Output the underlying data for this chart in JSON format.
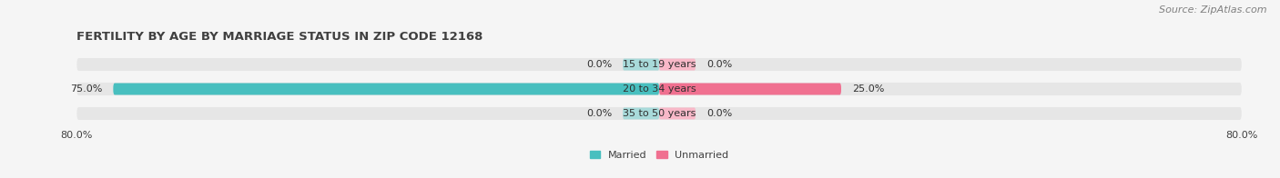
{
  "title": "FERTILITY BY AGE BY MARRIAGE STATUS IN ZIP CODE 12168",
  "source": "Source: ZipAtlas.com",
  "categories": [
    "15 to 19 years",
    "20 to 34 years",
    "35 to 50 years"
  ],
  "married_values": [
    0.0,
    75.0,
    0.0
  ],
  "unmarried_values": [
    0.0,
    25.0,
    0.0
  ],
  "married_color": "#48bfbf",
  "unmarried_color": "#f07090",
  "married_color_light": "#a8dada",
  "unmarried_color_light": "#f8b8c8",
  "bar_bg_color": "#e6e6e6",
  "bar_height": 0.52,
  "xlim": 80.0,
  "title_fontsize": 9.5,
  "source_fontsize": 8,
  "label_fontsize": 8,
  "tick_fontsize": 8,
  "category_fontsize": 8,
  "legend_fontsize": 8,
  "fig_bg_color": "#f5f5f5",
  "title_color": "#404040",
  "source_color": "#808080",
  "min_bar_width": 5.0
}
